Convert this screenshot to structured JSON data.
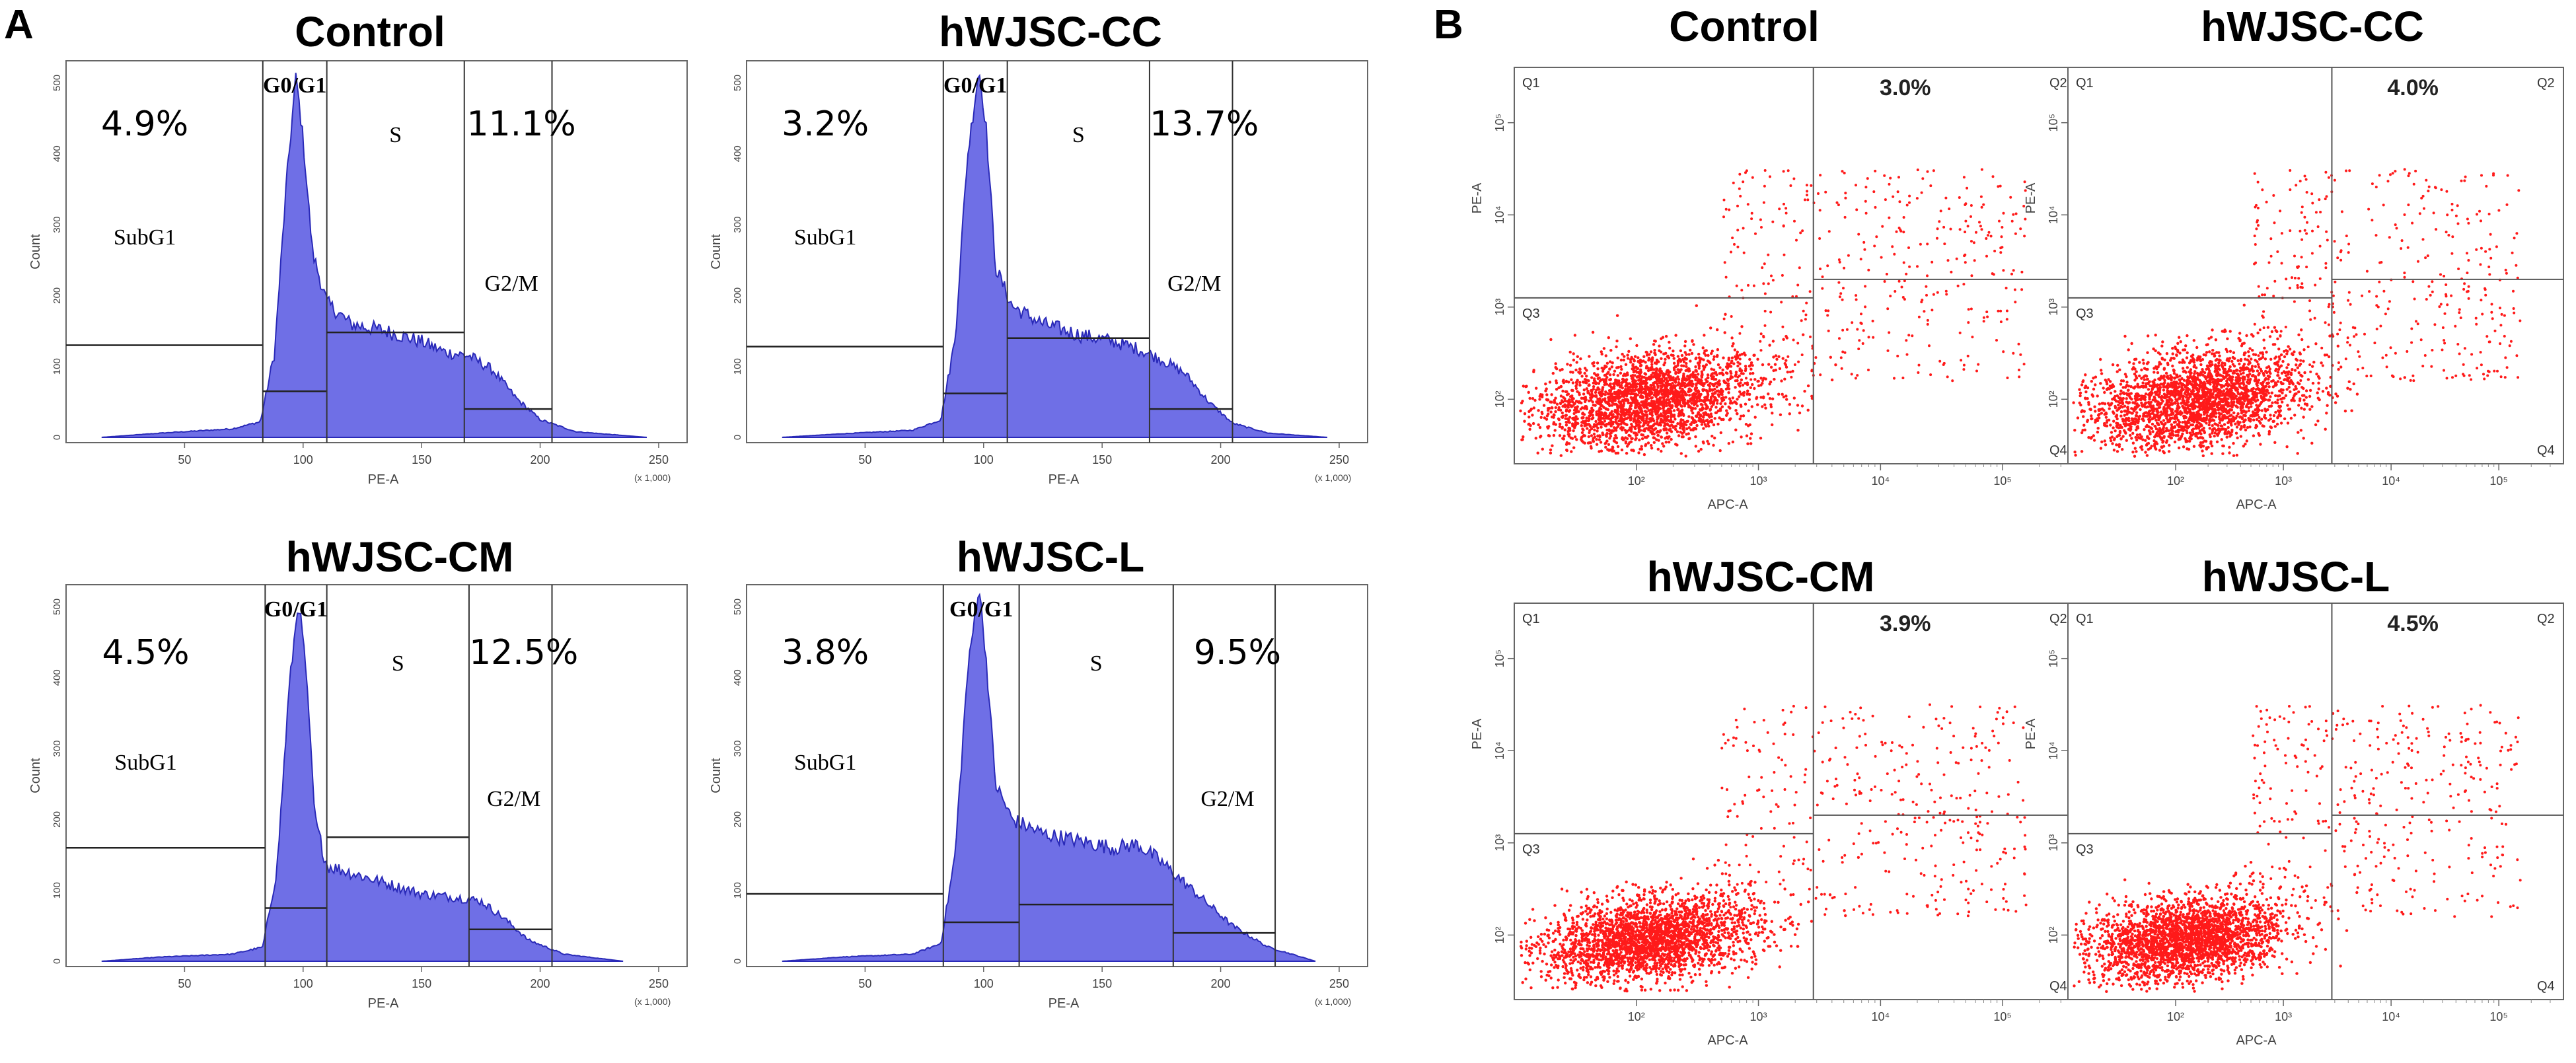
{
  "figure": {
    "panel_a_label": "A",
    "panel_b_label": "B"
  },
  "chart_data": [
    {
      "id": "a-control",
      "type": "histogram",
      "panel": "A",
      "title": "Control",
      "xlabel": "PE-A",
      "ylabel": "Count",
      "x_multiplier": "(x 1,000)",
      "xlim": [
        0,
        262
      ],
      "ylim": [
        0,
        520
      ],
      "xticks": [
        50,
        100,
        150,
        200,
        250
      ],
      "yticks": [
        0,
        100,
        200,
        300,
        400,
        500
      ],
      "gates": [
        {
          "name": "SubG1",
          "percent": "4.9%",
          "range": [
            0,
            83
          ],
          "marker": 130
        },
        {
          "name": "G0/G1",
          "range": [
            83,
            110
          ],
          "marker": 65
        },
        {
          "name": "S",
          "range": [
            110,
            168
          ],
          "marker": 148
        },
        {
          "name": "G2/M",
          "percent": "11.1%",
          "range": [
            168,
            205
          ],
          "marker": 40
        }
      ],
      "profile": [
        [
          15,
          0
        ],
        [
          40,
          6
        ],
        [
          70,
          12
        ],
        [
          82,
          22
        ],
        [
          88,
          120
        ],
        [
          93,
          360
        ],
        [
          97,
          510
        ],
        [
          100,
          420
        ],
        [
          104,
          260
        ],
        [
          110,
          190
        ],
        [
          120,
          160
        ],
        [
          135,
          150
        ],
        [
          150,
          135
        ],
        [
          160,
          120
        ],
        [
          170,
          115
        ],
        [
          180,
          95
        ],
        [
          190,
          55
        ],
        [
          200,
          25
        ],
        [
          215,
          8
        ],
        [
          245,
          0
        ]
      ],
      "peak_x": 97,
      "peak_height": 510
    },
    {
      "id": "a-cc",
      "type": "histogram",
      "panel": "A",
      "title": "hWJSC-CC",
      "xlabel": "PE-A",
      "ylabel": "Count",
      "x_multiplier": "(x 1,000)",
      "xlim": [
        0,
        262
      ],
      "ylim": [
        0,
        520
      ],
      "xticks": [
        50,
        100,
        150,
        200,
        250
      ],
      "yticks": [
        0,
        100,
        200,
        300,
        400,
        500
      ],
      "gates": [
        {
          "name": "SubG1",
          "percent": "3.2%",
          "range": [
            0,
            83
          ],
          "marker": 128
        },
        {
          "name": "G0/G1",
          "range": [
            83,
            110
          ],
          "marker": 62
        },
        {
          "name": "S",
          "range": [
            110,
            170
          ],
          "marker": 140
        },
        {
          "name": "G2/M",
          "percent": "13.7%",
          "range": [
            170,
            205
          ],
          "marker": 40
        }
      ],
      "profile": [
        [
          15,
          0
        ],
        [
          40,
          5
        ],
        [
          70,
          10
        ],
        [
          82,
          25
        ],
        [
          88,
          140
        ],
        [
          93,
          390
        ],
        [
          98,
          520
        ],
        [
          101,
          440
        ],
        [
          105,
          240
        ],
        [
          112,
          185
        ],
        [
          125,
          160
        ],
        [
          140,
          145
        ],
        [
          155,
          135
        ],
        [
          165,
          125
        ],
        [
          175,
          110
        ],
        [
          185,
          90
        ],
        [
          195,
          50
        ],
        [
          205,
          20
        ],
        [
          220,
          6
        ],
        [
          245,
          0
        ]
      ],
      "peak_x": 98,
      "peak_height": 520
    },
    {
      "id": "a-cm",
      "type": "histogram",
      "panel": "A",
      "title": "hWJSC-CM",
      "xlabel": "PE-A",
      "ylabel": "Count",
      "x_multiplier": "(x 1,000)",
      "xlim": [
        0,
        262
      ],
      "ylim": [
        0,
        520
      ],
      "xticks": [
        50,
        100,
        150,
        200,
        250
      ],
      "yticks": [
        0,
        100,
        200,
        300,
        400,
        500
      ],
      "gates": [
        {
          "name": "SubG1",
          "percent": "4.5%",
          "range": [
            0,
            84
          ],
          "marker": 160
        },
        {
          "name": "G0/G1",
          "range": [
            84,
            110
          ],
          "marker": 75
        },
        {
          "name": "S",
          "range": [
            110,
            170
          ],
          "marker": 175
        },
        {
          "name": "G2/M",
          "percent": "12.5%",
          "range": [
            170,
            205
          ],
          "marker": 45
        }
      ],
      "profile": [
        [
          15,
          0
        ],
        [
          40,
          6
        ],
        [
          70,
          10
        ],
        [
          83,
          20
        ],
        [
          89,
          130
        ],
        [
          94,
          380
        ],
        [
          98,
          510
        ],
        [
          101,
          420
        ],
        [
          105,
          200
        ],
        [
          110,
          135
        ],
        [
          120,
          125
        ],
        [
          135,
          110
        ],
        [
          150,
          95
        ],
        [
          165,
          90
        ],
        [
          175,
          85
        ],
        [
          185,
          60
        ],
        [
          195,
          30
        ],
        [
          210,
          10
        ],
        [
          235,
          0
        ]
      ],
      "peak_x": 98,
      "peak_height": 510
    },
    {
      "id": "a-l",
      "type": "histogram",
      "panel": "A",
      "title": "hWJSC-L",
      "xlabel": "PE-A",
      "ylabel": "Count",
      "x_multiplier": "(x 1,000)",
      "xlim": [
        0,
        262
      ],
      "ylim": [
        0,
        520
      ],
      "xticks": [
        50,
        100,
        150,
        200,
        250
      ],
      "yticks": [
        0,
        100,
        200,
        300,
        400,
        500
      ],
      "gates": [
        {
          "name": "SubG1",
          "percent": "3.8%",
          "range": [
            0,
            83
          ],
          "marker": 95
        },
        {
          "name": "G0/G1",
          "range": [
            83,
            115
          ],
          "marker": 55
        },
        {
          "name": "S",
          "range": [
            115,
            180
          ],
          "marker": 80
        },
        {
          "name": "G2/M",
          "percent": "9.5%",
          "range": [
            180,
            223
          ],
          "marker": 40
        }
      ],
      "profile": [
        [
          15,
          0
        ],
        [
          40,
          6
        ],
        [
          70,
          10
        ],
        [
          82,
          25
        ],
        [
          88,
          150
        ],
        [
          93,
          400
        ],
        [
          98,
          530
        ],
        [
          101,
          430
        ],
        [
          105,
          250
        ],
        [
          112,
          200
        ],
        [
          125,
          180
        ],
        [
          140,
          170
        ],
        [
          155,
          160
        ],
        [
          165,
          165
        ],
        [
          175,
          140
        ],
        [
          185,
          110
        ],
        [
          195,
          80
        ],
        [
          205,
          50
        ],
        [
          220,
          20
        ],
        [
          240,
          0
        ]
      ],
      "peak_x": 98,
      "peak_height": 530
    },
    {
      "id": "b-control",
      "type": "scatter",
      "panel": "B",
      "title": "Control",
      "xlabel": "APC-A",
      "ylabel": "PE-A",
      "scale": "log",
      "x_decades": [
        "10²",
        "10³",
        "10⁴",
        "10⁵"
      ],
      "y_decades": [
        "10²",
        "10³",
        "10⁴",
        "10⁵"
      ],
      "xlim_log": [
        1.0,
        5.6
      ],
      "ylim_log": [
        1.3,
        5.6
      ],
      "quadrant_divider": {
        "x_log": 3.45,
        "y_log_left": 3.1,
        "y_log_right": 3.3
      },
      "quadrants": {
        "Q1": "Q1",
        "Q2": "Q2",
        "Q3": "Q3",
        "Q4": "Q4"
      },
      "q2_percent": "3.0%",
      "population": {
        "x_log": 2.1,
        "y_log": 2.0,
        "spread_x": 0.45,
        "spread_y": 0.25
      }
    },
    {
      "id": "b-cc",
      "type": "scatter",
      "panel": "B",
      "title": "hWJSC-CC",
      "xlabel": "APC-A",
      "ylabel": "PE-A",
      "scale": "log",
      "x_decades": [
        "10²",
        "10³",
        "10⁴",
        "10⁵"
      ],
      "y_decades": [
        "10²",
        "10³",
        "10⁴",
        "10⁵"
      ],
      "xlim_log": [
        1.0,
        5.6
      ],
      "ylim_log": [
        1.3,
        5.6
      ],
      "quadrant_divider": {
        "x_log": 3.45,
        "y_log_left": 3.1,
        "y_log_right": 3.3
      },
      "quadrants": {
        "Q1": "Q1",
        "Q2": "Q2",
        "Q3": "Q3",
        "Q4": "Q4"
      },
      "q2_percent": "4.0%",
      "population": {
        "x_log": 2.2,
        "y_log": 2.0,
        "spread_x": 0.5,
        "spread_y": 0.25
      }
    },
    {
      "id": "b-cm",
      "type": "scatter",
      "panel": "B",
      "title": "hWJSC-CM",
      "xlabel": "APC-A",
      "ylabel": "PE-A",
      "scale": "log",
      "x_decades": [
        "10²",
        "10³",
        "10⁴",
        "10⁵"
      ],
      "y_decades": [
        "10²",
        "10³",
        "10⁴",
        "10⁵"
      ],
      "xlim_log": [
        1.0,
        5.6
      ],
      "ylim_log": [
        1.3,
        5.6
      ],
      "quadrant_divider": {
        "x_log": 3.45,
        "y_log_left": 3.1,
        "y_log_right": 3.3
      },
      "quadrants": {
        "Q1": "Q1",
        "Q2": "Q2",
        "Q3": "Q3",
        "Q4": "Q4"
      },
      "q2_percent": "3.9%",
      "population": {
        "x_log": 2.1,
        "y_log": 1.95,
        "spread_x": 0.45,
        "spread_y": 0.22
      }
    },
    {
      "id": "b-l",
      "type": "scatter",
      "panel": "B",
      "title": "hWJSC-L",
      "xlabel": "APC-A",
      "ylabel": "PE-A",
      "scale": "log",
      "x_decades": [
        "10²",
        "10³",
        "10⁴",
        "10⁵"
      ],
      "y_decades": [
        "10²",
        "10³",
        "10⁴",
        "10⁵"
      ],
      "xlim_log": [
        1.0,
        5.6
      ],
      "ylim_log": [
        1.3,
        5.6
      ],
      "quadrant_divider": {
        "x_log": 3.45,
        "y_log_left": 3.1,
        "y_log_right": 3.3
      },
      "quadrants": {
        "Q1": "Q1",
        "Q2": "Q2",
        "Q3": "Q3",
        "Q4": "Q4"
      },
      "q2_percent": "4.5%",
      "population": {
        "x_log": 2.1,
        "y_log": 1.95,
        "spread_x": 0.45,
        "spread_y": 0.22
      }
    }
  ],
  "style": {
    "histogram_fill": "#6f6fe6",
    "histogram_stroke": "#2a2ab8",
    "dot_color": "#ff1a1a",
    "gate_line": "#333333"
  }
}
